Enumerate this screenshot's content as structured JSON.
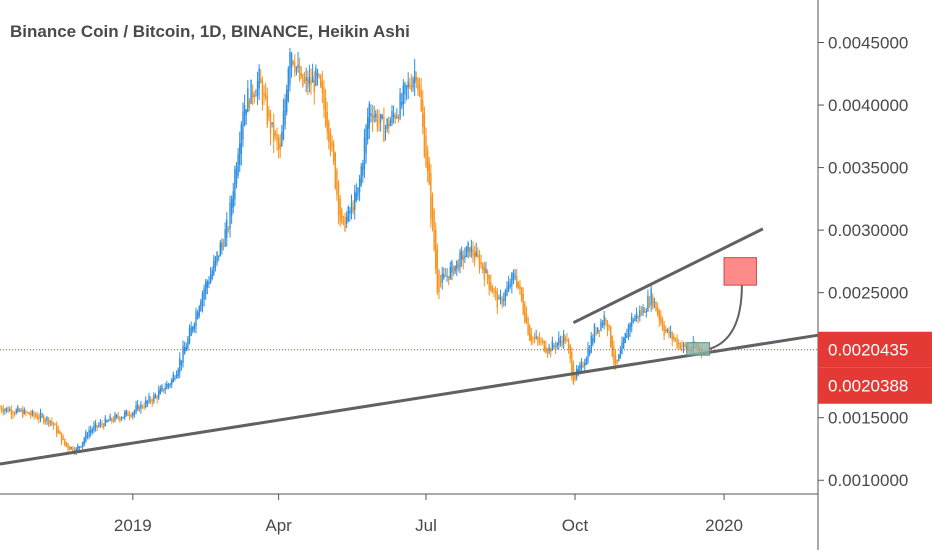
{
  "header": {
    "title": "Binance Coin / Bitcoin, 1D, BINANCE, Heikin Ashi"
  },
  "colors": {
    "up": "#2f8ee0",
    "down": "#f7931e",
    "trendline": "#616161",
    "price_line": "#e53935",
    "badge": "#e53935",
    "target_box": "#ff8a8a",
    "entry_box": "#8fb3a6"
  },
  "chart_data": {
    "type": "candlestick",
    "title": "Binance Coin / Bitcoin, 1D, BINANCE, Heikin Ashi",
    "x_tick_labels": [
      "2019",
      "Apr",
      "Jul",
      "Oct",
      "2020"
    ],
    "x_ticks": [
      "2019-01-01",
      "2019-04-01",
      "2019-07-01",
      "2019-10-01",
      "2020-01-01"
    ],
    "x_range": [
      "2018-10-11",
      "2020-02-28"
    ],
    "y_tick_labels": [
      "0.0045000",
      "0.0040000",
      "0.0035000",
      "0.0030000",
      "0.0025000",
      "0.0015000",
      "0.0010000"
    ],
    "y_ticks": [
      0.0045,
      0.004,
      0.0035,
      0.003,
      0.0025,
      0.0015,
      0.001
    ],
    "ylim": [
      0.00089,
      0.00484
    ],
    "grid": false,
    "price_labels": [
      {
        "label": "0.0020435",
        "value": 0.0020435
      },
      {
        "label": "0.0020388",
        "value": 0.0020388
      }
    ],
    "close_path": [
      [
        "2018-10-11",
        0.00158
      ],
      [
        "2018-10-28",
        0.00153
      ],
      [
        "2018-11-11",
        0.00148
      ],
      [
        "2018-11-20",
        0.00128
      ],
      [
        "2018-11-27",
        0.00124
      ],
      [
        "2018-12-05",
        0.0014
      ],
      [
        "2018-12-18",
        0.00148
      ],
      [
        "2019-01-01",
        0.00155
      ],
      [
        "2019-01-15",
        0.00167
      ],
      [
        "2019-01-25",
        0.0018
      ],
      [
        "2019-02-04",
        0.00212
      ],
      [
        "2019-02-12",
        0.00248
      ],
      [
        "2019-02-19",
        0.00268
      ],
      [
        "2019-03-01",
        0.00305
      ],
      [
        "2019-03-10",
        0.004
      ],
      [
        "2019-03-20",
        0.0042
      ],
      [
        "2019-03-26",
        0.00385
      ],
      [
        "2019-04-02",
        0.0036
      ],
      [
        "2019-04-08",
        0.0045
      ],
      [
        "2019-04-15",
        0.00415
      ],
      [
        "2019-04-25",
        0.0042
      ],
      [
        "2019-05-02",
        0.0038
      ],
      [
        "2019-05-10",
        0.003
      ],
      [
        "2019-05-20",
        0.0033
      ],
      [
        "2019-05-27",
        0.004
      ],
      [
        "2019-06-05",
        0.0038
      ],
      [
        "2019-06-15",
        0.004
      ],
      [
        "2019-06-25",
        0.0043
      ],
      [
        "2019-07-03",
        0.0033
      ],
      [
        "2019-07-08",
        0.00255
      ],
      [
        "2019-07-18",
        0.0027
      ],
      [
        "2019-07-28",
        0.00285
      ],
      [
        "2019-08-05",
        0.0027
      ],
      [
        "2019-08-15",
        0.0024
      ],
      [
        "2019-08-25",
        0.00265
      ],
      [
        "2019-09-03",
        0.00215
      ],
      [
        "2019-09-15",
        0.00205
      ],
      [
        "2019-09-25",
        0.00215
      ],
      [
        "2019-09-30",
        0.00181
      ],
      [
        "2019-10-05",
        0.0019
      ],
      [
        "2019-10-13",
        0.0022
      ],
      [
        "2019-10-20",
        0.00232
      ],
      [
        "2019-10-26",
        0.00188
      ],
      [
        "2019-11-04",
        0.00228
      ],
      [
        "2019-11-12",
        0.00236
      ],
      [
        "2019-11-17",
        0.00248
      ],
      [
        "2019-11-25",
        0.0022
      ],
      [
        "2019-12-03",
        0.0021
      ],
      [
        "2019-12-10",
        0.00204
      ],
      [
        "2019-12-14",
        0.00206
      ],
      [
        "2019-12-18",
        0.00204
      ]
    ],
    "drawings": {
      "support_line": [
        [
          "2018-10-11",
          0.00113
        ],
        [
          "2020-02-28",
          0.00216
        ]
      ],
      "upper_line": [
        [
          "2019-09-30",
          0.00226
        ],
        [
          "2020-01-25",
          0.00301
        ]
      ],
      "entry_zone": {
        "x0": "2019-12-09",
        "x1": "2019-12-23",
        "y0": 0.002,
        "y1": 0.0021
      },
      "target_zone": {
        "x0": "2020-01-01",
        "x1": "2020-01-21",
        "y0": 0.00256,
        "y1": 0.00278
      },
      "projection_curve": [
        [
          "2019-12-23",
          0.00205
        ],
        [
          "2020-01-12",
          0.00256
        ]
      ]
    }
  }
}
